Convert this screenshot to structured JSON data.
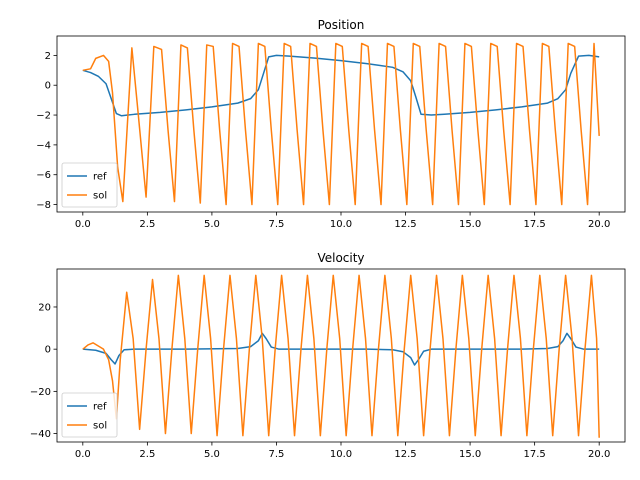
{
  "chart_data": [
    {
      "type": "line",
      "title": "Position",
      "xlabel": "",
      "ylabel": "",
      "xlim": [
        -1.0,
        21.0
      ],
      "ylim": [
        -8.5,
        3.3
      ],
      "xticks": [
        0.0,
        2.5,
        5.0,
        7.5,
        10.0,
        12.5,
        15.0,
        17.5,
        20.0
      ],
      "xtick_labels": [
        "0.0",
        "2.5",
        "5.0",
        "7.5",
        "10.0",
        "12.5",
        "15.0",
        "17.5",
        "20.0"
      ],
      "yticks": [
        -8,
        -6,
        -4,
        -2,
        0,
        2
      ],
      "ytick_labels": [
        "−8",
        "−6",
        "−4",
        "−2",
        "0",
        "2"
      ],
      "grid": false,
      "legend_position": "lower-left",
      "series": [
        {
          "name": "ref",
          "color": "#1f77b4",
          "x": [
            0,
            0.3,
            0.6,
            0.9,
            1.1,
            1.3,
            1.5,
            2,
            3,
            4,
            5,
            6,
            6.5,
            6.8,
            7.0,
            7.2,
            7.5,
            8,
            9,
            10,
            11,
            12,
            12.4,
            12.7,
            12.9,
            13.1,
            13.5,
            14,
            15,
            16,
            17,
            18,
            18.4,
            18.7,
            18.9,
            19.2,
            19.6,
            20
          ],
          "y": [
            1.0,
            0.85,
            0.6,
            0.1,
            -0.9,
            -1.9,
            -2.05,
            -1.95,
            -1.82,
            -1.65,
            -1.45,
            -1.2,
            -0.9,
            -0.3,
            0.8,
            1.9,
            2.0,
            1.95,
            1.82,
            1.65,
            1.45,
            1.2,
            0.9,
            0.3,
            -0.8,
            -1.95,
            -2.0,
            -1.95,
            -1.82,
            -1.65,
            -1.45,
            -1.2,
            -0.9,
            -0.3,
            0.8,
            1.95,
            2.0,
            1.9
          ]
        },
        {
          "name": "sol",
          "color": "#ff7f0e",
          "x": [
            0,
            0.3,
            0.5,
            0.8,
            1.0,
            1.15,
            1.35,
            1.55,
            1.9,
            2.15,
            2.45,
            2.75,
            3.05,
            3.3,
            3.55,
            3.8,
            4.05,
            4.3,
            4.55,
            4.8,
            5.05,
            5.3,
            5.55,
            5.8,
            6.05,
            6.3,
            6.55,
            6.8,
            7.05,
            7.3,
            7.55,
            7.8,
            8.05,
            8.3,
            8.55,
            8.8,
            9.05,
            9.3,
            9.55,
            9.8,
            10.05,
            10.3,
            10.55,
            10.8,
            11.05,
            11.3,
            11.55,
            11.8,
            12.05,
            12.3,
            12.55,
            12.8,
            13.05,
            13.3,
            13.55,
            13.8,
            14.05,
            14.3,
            14.55,
            14.8,
            15.05,
            15.3,
            15.55,
            15.8,
            16.05,
            16.3,
            16.55,
            16.8,
            17.05,
            17.3,
            17.55,
            17.8,
            18.05,
            18.3,
            18.55,
            18.8,
            19.05,
            19.3,
            19.55,
            19.8,
            20.0
          ],
          "y": [
            1.0,
            1.1,
            1.8,
            2.0,
            1.6,
            -0.5,
            -5.5,
            -7.8,
            2.5,
            -2.0,
            -7.5,
            2.6,
            2.4,
            -3.0,
            -7.8,
            2.7,
            2.5,
            -3.0,
            -7.9,
            2.7,
            2.6,
            -3.0,
            -8.0,
            2.8,
            2.6,
            -3.0,
            -8.0,
            2.8,
            2.6,
            -3.0,
            -8.0,
            2.8,
            2.6,
            -3.0,
            -8.0,
            2.8,
            2.6,
            -3.0,
            -8.0,
            2.8,
            2.6,
            -3.0,
            -8.0,
            2.8,
            2.6,
            -3.0,
            -8.0,
            2.8,
            2.6,
            -3.0,
            -8.0,
            2.8,
            2.6,
            -3.0,
            -8.0,
            2.8,
            2.6,
            -3.0,
            -8.0,
            2.8,
            2.6,
            -3.0,
            -8.0,
            2.8,
            2.6,
            -3.0,
            -8.0,
            2.8,
            2.6,
            -3.0,
            -8.0,
            2.8,
            2.6,
            -3.0,
            -8.0,
            2.8,
            2.6,
            -3.0,
            -8.0,
            2.8,
            -3.4
          ]
        }
      ]
    },
    {
      "type": "line",
      "title": "Velocity",
      "xlabel": "",
      "ylabel": "",
      "xlim": [
        -1.0,
        21.0
      ],
      "ylim": [
        -44.0,
        38.0
      ],
      "xticks": [
        0.0,
        2.5,
        5.0,
        7.5,
        10.0,
        12.5,
        15.0,
        17.5,
        20.0
      ],
      "xtick_labels": [
        "0.0",
        "2.5",
        "5.0",
        "7.5",
        "10.0",
        "12.5",
        "15.0",
        "17.5",
        "20.0"
      ],
      "yticks": [
        -40,
        -20,
        0,
        20
      ],
      "ytick_labels": [
        "−40",
        "−20",
        "0",
        "20"
      ],
      "grid": false,
      "legend_position": "lower-left",
      "series": [
        {
          "name": "ref",
          "color": "#1f77b4",
          "x": [
            0,
            0.5,
            0.9,
            1.1,
            1.25,
            1.4,
            1.6,
            2,
            4,
            6,
            6.5,
            6.8,
            6.95,
            7.1,
            7.3,
            7.6,
            9,
            11,
            12,
            12.4,
            12.7,
            12.85,
            13.0,
            13.2,
            13.5,
            15,
            17,
            18,
            18.4,
            18.6,
            18.75,
            18.9,
            19.1,
            19.4,
            20
          ],
          "y": [
            0,
            -0.5,
            -2,
            -5,
            -7,
            -3,
            -0.3,
            0,
            0,
            0.3,
            1.2,
            4,
            7.5,
            5,
            1,
            0,
            0,
            0,
            -0.3,
            -1.2,
            -4,
            -7.5,
            -5,
            -1,
            0,
            0,
            0,
            0.3,
            1.2,
            4,
            7.5,
            5,
            1,
            0,
            0
          ]
        },
        {
          "name": "sol",
          "color": "#ff7f0e",
          "x": [
            0,
            0.2,
            0.4,
            0.6,
            0.8,
            1.0,
            1.15,
            1.3,
            1.45,
            1.7,
            1.95,
            2.2,
            2.45,
            2.7,
            2.95,
            3.2,
            3.45,
            3.7,
            3.95,
            4.2,
            4.45,
            4.7,
            4.95,
            5.2,
            5.45,
            5.7,
            5.95,
            6.2,
            6.45,
            6.7,
            6.95,
            7.2,
            7.45,
            7.7,
            7.95,
            8.2,
            8.45,
            8.7,
            8.95,
            9.2,
            9.45,
            9.7,
            9.95,
            10.2,
            10.45,
            10.7,
            10.95,
            11.2,
            11.45,
            11.7,
            11.95,
            12.2,
            12.45,
            12.7,
            12.95,
            13.2,
            13.45,
            13.7,
            13.95,
            14.2,
            14.45,
            14.7,
            14.95,
            15.2,
            15.45,
            15.7,
            15.95,
            16.2,
            16.45,
            16.7,
            16.95,
            17.2,
            17.45,
            17.7,
            17.95,
            18.2,
            18.45,
            18.7,
            18.95,
            19.2,
            19.45,
            19.7,
            19.9,
            20.0
          ],
          "y": [
            0,
            2,
            3,
            1.5,
            0,
            -5,
            -15,
            -33,
            -5,
            27,
            5,
            -38,
            0,
            33,
            5,
            -40,
            0,
            35,
            5,
            -40,
            0,
            35,
            5,
            -41,
            0,
            35,
            5,
            -41,
            0,
            35,
            5,
            -41,
            0,
            35,
            5,
            -41,
            0,
            35,
            5,
            -41,
            0,
            35,
            5,
            -41,
            0,
            35,
            5,
            -41,
            0,
            35,
            5,
            -41,
            0,
            35,
            5,
            -41,
            0,
            35,
            5,
            -41,
            0,
            35,
            5,
            -41,
            0,
            35,
            5,
            -41,
            0,
            35,
            5,
            -41,
            0,
            35,
            5,
            -41,
            0,
            35,
            5,
            -41,
            0,
            35,
            5,
            -42
          ]
        }
      ]
    }
  ]
}
